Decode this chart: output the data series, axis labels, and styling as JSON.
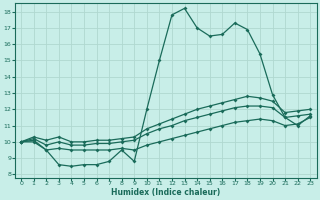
{
  "xlabel": "Humidex (Indice chaleur)",
  "xlim": [
    -0.5,
    23.5
  ],
  "ylim": [
    7.8,
    18.5
  ],
  "yticks": [
    8,
    9,
    10,
    11,
    12,
    13,
    14,
    15,
    16,
    17,
    18
  ],
  "xticks": [
    0,
    1,
    2,
    3,
    4,
    5,
    6,
    7,
    8,
    9,
    10,
    11,
    12,
    13,
    14,
    15,
    16,
    17,
    18,
    19,
    20,
    21,
    22,
    23
  ],
  "bg_color": "#c8eee8",
  "line_color": "#1a6b5a",
  "grid_color": "#b0d8d0",
  "curve1_x": [
    0,
    1,
    2,
    3,
    4,
    5,
    6,
    7,
    8,
    9,
    10,
    11,
    12,
    13,
    14,
    15,
    16,
    17,
    18,
    19,
    20,
    21,
    22,
    23
  ],
  "curve1_y": [
    10.0,
    10.0,
    9.5,
    8.6,
    8.5,
    8.6,
    8.6,
    8.8,
    9.5,
    8.8,
    12.0,
    15.0,
    17.8,
    18.2,
    17.0,
    16.5,
    16.6,
    17.3,
    16.9,
    15.4,
    12.9,
    11.5,
    11.0,
    11.6
  ],
  "curve2_x": [
    0,
    1,
    2,
    3,
    4,
    5,
    6,
    7,
    8,
    9,
    10,
    11,
    12,
    13,
    14,
    15,
    16,
    17,
    18,
    19,
    20,
    21,
    22,
    23
  ],
  "curve2_y": [
    10.0,
    10.1,
    9.5,
    9.6,
    9.5,
    9.5,
    9.5,
    9.5,
    9.6,
    9.5,
    9.8,
    10.0,
    10.2,
    10.4,
    10.6,
    10.8,
    11.0,
    11.2,
    11.3,
    11.4,
    11.3,
    11.0,
    11.1,
    11.5
  ],
  "curve3_x": [
    0,
    1,
    2,
    3,
    4,
    5,
    6,
    7,
    8,
    9,
    10,
    11,
    12,
    13,
    14,
    15,
    16,
    17,
    18,
    19,
    20,
    21,
    22,
    23
  ],
  "curve3_y": [
    10.0,
    10.2,
    9.8,
    10.0,
    9.8,
    9.8,
    9.9,
    9.9,
    10.0,
    10.1,
    10.5,
    10.8,
    11.0,
    11.3,
    11.5,
    11.7,
    11.9,
    12.1,
    12.2,
    12.2,
    12.1,
    11.5,
    11.6,
    11.7
  ],
  "curve4_x": [
    0,
    1,
    2,
    3,
    4,
    5,
    6,
    7,
    8,
    9,
    10,
    11,
    12,
    13,
    14,
    15,
    16,
    17,
    18,
    19,
    20,
    21,
    22,
    23
  ],
  "curve4_y": [
    10.0,
    10.3,
    10.1,
    10.3,
    10.0,
    10.0,
    10.1,
    10.1,
    10.2,
    10.3,
    10.8,
    11.1,
    11.4,
    11.7,
    12.0,
    12.2,
    12.4,
    12.6,
    12.8,
    12.7,
    12.5,
    11.8,
    11.9,
    12.0
  ]
}
